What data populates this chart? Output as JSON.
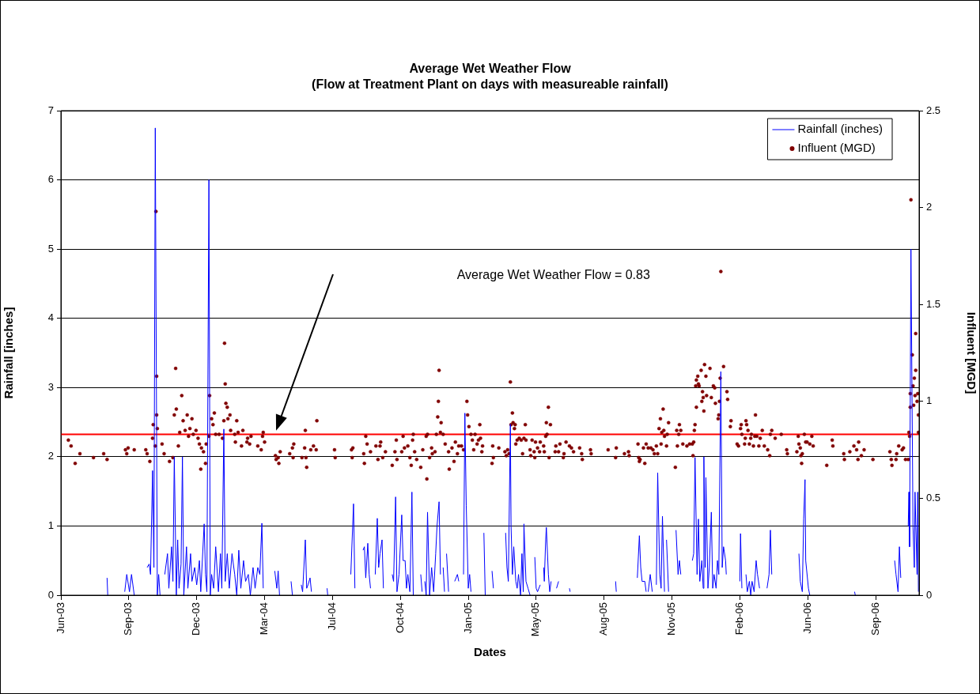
{
  "chart_data": {
    "type": "line",
    "title": "Average Wet Weather Flow",
    "subtitle": "(Flow at Treatment Plant on days with measureable rainfall)",
    "xlabel": "Dates",
    "ylabel": "Rainfall [inches]",
    "y2label": "Influent [MGD]",
    "xlim": [
      "2003-06-01",
      "2006-11-16"
    ],
    "xticks": [
      {
        "value": "2003-06-01",
        "label": "Jun-03"
      },
      {
        "value": "2003-09-09",
        "label": "Sep-03"
      },
      {
        "value": "2003-12-18",
        "label": "Dec-03"
      },
      {
        "value": "2004-03-27",
        "label": "Mar-04"
      },
      {
        "value": "2004-07-05",
        "label": "Jul-04"
      },
      {
        "value": "2004-10-13",
        "label": "Oct-04"
      },
      {
        "value": "2005-01-21",
        "label": "Jan-05"
      },
      {
        "value": "2005-05-01",
        "label": "May-05"
      },
      {
        "value": "2005-08-09",
        "label": "Aug-05"
      },
      {
        "value": "2005-11-17",
        "label": "Nov-05"
      },
      {
        "value": "2006-02-25",
        "label": "Feb-06"
      },
      {
        "value": "2006-06-05",
        "label": "Jun-06"
      },
      {
        "value": "2006-09-13",
        "label": "Sep-06"
      }
    ],
    "ylim": [
      0,
      7
    ],
    "yticks": [
      0,
      1,
      2,
      3,
      4,
      5,
      6,
      7
    ],
    "y2lim": [
      0,
      2.5
    ],
    "y2ticks": [
      0,
      0.5,
      1,
      1.5,
      2,
      2.5
    ],
    "grid": "y",
    "legend": "top right",
    "ref_lines": [
      {
        "axis": "y2",
        "value": 0.83,
        "color": "#ff0000"
      }
    ],
    "annotations": [
      "Average Wet Weather Flow = 0.83"
    ],
    "series": [
      {
        "name": "Rainfall (inches)",
        "type": "line",
        "color": "#0000ff",
        "marker": "none",
        "x": [
          "2003-08-08",
          "2003-08-09",
          "2003-08-20",
          "2003-09-03",
          "2003-09-06",
          "2003-09-10",
          "2003-09-13",
          "2003-09-17",
          "2003-09-25",
          "2003-10-06",
          "2003-10-09",
          "2003-10-11",
          "2003-10-14",
          "2003-10-16",
          "2003-10-18",
          "2003-10-21",
          "2003-10-23",
          "2003-10-25",
          "2003-10-28",
          "2003-11-01",
          "2003-11-05",
          "2003-11-07",
          "2003-11-11",
          "2003-11-13",
          "2003-11-15",
          "2003-11-18",
          "2003-11-20",
          "2003-11-22",
          "2003-11-25",
          "2003-11-27",
          "2003-11-29",
          "2003-12-03",
          "2003-12-05",
          "2003-12-09",
          "2003-12-11",
          "2003-12-15",
          "2003-12-18",
          "2003-12-22",
          "2003-12-24",
          "2003-12-29",
          "2003-12-31",
          "2004-01-02",
          "2004-01-05",
          "2004-01-07",
          "2004-01-09",
          "2004-01-12",
          "2004-01-15",
          "2004-01-19",
          "2004-01-22",
          "2004-01-24",
          "2004-01-27",
          "2004-01-29",
          "2004-02-01",
          "2004-02-04",
          "2004-02-08",
          "2004-02-12",
          "2004-02-15",
          "2004-02-18",
          "2004-02-21",
          "2004-02-25",
          "2004-02-28",
          "2004-03-03",
          "2004-03-06",
          "2004-03-10",
          "2004-03-13",
          "2004-03-17",
          "2004-03-20",
          "2004-03-23",
          "2004-03-25",
          "2004-04-01",
          "2004-04-11",
          "2004-04-14",
          "2004-04-16",
          "2004-04-18",
          "2004-04-25",
          "2004-05-05",
          "2004-05-07",
          "2004-05-12",
          "2004-05-20",
          "2004-05-22",
          "2004-05-26",
          "2004-05-28",
          "2004-05-30",
          "2004-06-02",
          "2004-06-04",
          "2004-06-15",
          "2004-06-27",
          "2004-06-28",
          "2004-07-15",
          "2004-08-01",
          "2004-08-05",
          "2004-08-07",
          "2004-08-12",
          "2004-08-19",
          "2004-08-21",
          "2004-08-23",
          "2004-08-26",
          "2004-08-28",
          "2004-08-30",
          "2004-09-02",
          "2004-09-06",
          "2004-09-09",
          "2004-09-11",
          "2004-09-13",
          "2004-09-16",
          "2004-09-18",
          "2004-09-25",
          "2004-10-01",
          "2004-10-03",
          "2004-10-06",
          "2004-10-08",
          "2004-10-11",
          "2004-10-15",
          "2004-10-17",
          "2004-10-20",
          "2004-10-22",
          "2004-10-24",
          "2004-10-27",
          "2004-10-30",
          "2004-11-01",
          "2004-11-06",
          "2004-11-12",
          "2004-11-14",
          "2004-11-16",
          "2004-11-18",
          "2004-11-20",
          "2004-11-22",
          "2004-11-25",
          "2004-11-28",
          "2004-12-01",
          "2004-12-04",
          "2004-12-06",
          "2004-12-09",
          "2004-12-11",
          "2004-12-13",
          "2004-12-15",
          "2004-12-17",
          "2004-12-18",
          "2004-12-20",
          "2004-12-23",
          "2004-12-27",
          "2005-01-01",
          "2005-01-05",
          "2005-01-07",
          "2005-01-10",
          "2005-01-14",
          "2005-01-16",
          "2005-01-18",
          "2005-01-21",
          "2005-01-23",
          "2005-01-25",
          "2005-02-01",
          "2005-02-13",
          "2005-02-15",
          "2005-02-20",
          "2005-02-25",
          "2005-02-27",
          "2005-03-05",
          "2005-03-17",
          "2005-03-19",
          "2005-03-21",
          "2005-03-24",
          "2005-03-25",
          "2005-03-27",
          "2005-03-29",
          "2005-04-01",
          "2005-04-03",
          "2005-04-05",
          "2005-04-08",
          "2005-04-10",
          "2005-04-12",
          "2005-04-13",
          "2005-04-16",
          "2005-04-19",
          "2005-04-22",
          "2005-04-25",
          "2005-04-29",
          "2005-05-01",
          "2005-05-03",
          "2005-05-07",
          "2005-05-10",
          "2005-05-12",
          "2005-05-13",
          "2005-05-15",
          "2005-05-16",
          "2005-05-19",
          "2005-05-21",
          "2005-05-23",
          "2005-05-27",
          "2005-05-31",
          "2005-06-03",
          "2005-06-10",
          "2005-06-19",
          "2005-06-20",
          "2005-07-15",
          "2005-08-26",
          "2005-08-27",
          "2005-09-10",
          "2005-09-27",
          "2005-09-30",
          "2005-10-02",
          "2005-10-04",
          "2005-10-08",
          "2005-10-10",
          "2005-10-11",
          "2005-10-13",
          "2005-10-16",
          "2005-10-19",
          "2005-10-22",
          "2005-10-25",
          "2005-10-27",
          "2005-10-30",
          "2005-11-01",
          "2005-11-03",
          "2005-11-06",
          "2005-11-07",
          "2005-11-09",
          "2005-11-12",
          "2005-11-18",
          "2005-11-23",
          "2005-11-26",
          "2005-11-28",
          "2005-11-30",
          "2005-12-08",
          "2005-12-17",
          "2005-12-19",
          "2005-12-21",
          "2005-12-24",
          "2005-12-26",
          "2005-12-28",
          "2005-12-31",
          "2006-01-02",
          "2006-01-03",
          "2006-01-05",
          "2006-01-06",
          "2006-01-09",
          "2006-01-11",
          "2006-01-14",
          "2006-01-16",
          "2006-01-18",
          "2006-01-21",
          "2006-01-23",
          "2006-01-25",
          "2006-01-28",
          "2006-01-30",
          "2006-02-01",
          "2006-02-04",
          "2006-02-05",
          "2006-02-12",
          "2006-02-25",
          "2006-02-26",
          "2006-02-28",
          "2006-03-02",
          "2006-03-06",
          "2006-03-08",
          "2006-03-11",
          "2006-03-13",
          "2006-03-15",
          "2006-03-18",
          "2006-03-21",
          "2006-03-23",
          "2006-03-26",
          "2006-04-01",
          "2006-04-06",
          "2006-04-09",
          "2006-04-11",
          "2006-04-13",
          "2006-04-20",
          "2006-05-23",
          "2006-05-25",
          "2006-05-28",
          "2006-05-30",
          "2006-06-01",
          "2006-06-02",
          "2006-06-06",
          "2006-06-08",
          "2006-07-01",
          "2006-08-13",
          "2006-08-14",
          "2006-09-20",
          "2006-10-11",
          "2006-10-13",
          "2006-10-16",
          "2006-10-18",
          "2006-10-20",
          "2006-10-25",
          "2006-10-31",
          "2006-11-01",
          "2006-11-02",
          "2006-11-04",
          "2006-11-07",
          "2006-11-09",
          "2006-11-10",
          "2006-11-13",
          "2006-11-14",
          "2006-11-15"
        ],
        "values": [
          0.25,
          0,
          null,
          0.05,
          0.3,
          0.05,
          0.3,
          0,
          null,
          0.4,
          0.45,
          0.3,
          1.8,
          0.4,
          6.75,
          0,
          0.3,
          0,
          null,
          0.3,
          0.6,
          0.1,
          0.7,
          0.2,
          2.0,
          0,
          0.8,
          0.1,
          0.45,
          2.0,
          0,
          0.7,
          0.1,
          0.6,
          0.2,
          0.4,
          0.15,
          0.5,
          0.05,
          1.03,
          0.3,
          0.05,
          6.0,
          0,
          0.3,
          0.1,
          0.7,
          0.05,
          0.6,
          0.1,
          2.4,
          0.2,
          0.6,
          0.1,
          0.6,
          0.3,
          0,
          0.65,
          0.1,
          0.5,
          0.2,
          0.3,
          0,
          0.4,
          0.1,
          0.4,
          0.3,
          1.04,
          0.1,
          null,
          0.35,
          0.1,
          0.35,
          0,
          null,
          0.2,
          0,
          null,
          0.15,
          0.05,
          0.8,
          0.1,
          0.15,
          0.25,
          0.05,
          null,
          0.1,
          0,
          null,
          0.3,
          1.32,
          0.1,
          null,
          0.65,
          0.7,
          0.25,
          0.75,
          0.3,
          0.1,
          null,
          0.3,
          1.11,
          0.4,
          0.6,
          0.8,
          0.1,
          null,
          0.3,
          0.2,
          1.42,
          0.05,
          0.3,
          1.16,
          0.5,
          0.5,
          0.1,
          0.3,
          0.05,
          1.49,
          0,
          null,
          0.3,
          0.05,
          null,
          0.2,
          0,
          1.2,
          0,
          0.4,
          0.05,
          0.6,
          1.0,
          1.35,
          0.3,
          null,
          0.4,
          0.05,
          null,
          0.6,
          0.05,
          null,
          0.2,
          0.3,
          0.2,
          null,
          0.3,
          2.63,
          1.3,
          0.1,
          0.3,
          0.05,
          null,
          0.9,
          0,
          null,
          0.35,
          0.1,
          null,
          0.9,
          0.4,
          0.2,
          2.47,
          1.0,
          0.3,
          0.7,
          0.2,
          0.1,
          0.3,
          0,
          0.6,
          0.05,
          1.03,
          0.2,
          0.1,
          0,
          null,
          0.55,
          0.1,
          0.05,
          0.15,
          null,
          0.4,
          0.2,
          0.8,
          0.98,
          0.3,
          0.05,
          0.2,
          null,
          0.1,
          0.2,
          null,
          0.1,
          0.05,
          null,
          0.2,
          0.05,
          null,
          0.25,
          0.86,
          0.4,
          0.2,
          0.2,
          0.05,
          null,
          0.05,
          0.3,
          0.05,
          null,
          0.15,
          1.77,
          0.3,
          0.1,
          1.14,
          0.05,
          null,
          0.8,
          0.05,
          null,
          0.94,
          0.3,
          0.5,
          0.3,
          null,
          0.5,
          0.6,
          1.99,
          0.3,
          1.1,
          0.2,
          0.5,
          0.1,
          2.0,
          0.4,
          1.7,
          0.1,
          0.4,
          1.2,
          0.1,
          0.3,
          0.1,
          0.5,
          0.3,
          3.23,
          0.4,
          0.7,
          0.5,
          0.3,
          null,
          0.2,
          0.89,
          0.1,
          null,
          0.3,
          0.05,
          0.2,
          0,
          0.2,
          0.05,
          0.5,
          0.3,
          0.1,
          null,
          0.1,
          0.3,
          0.94,
          0.3,
          null,
          0.6,
          0.2,
          0.05,
          1.1,
          1.67,
          0.5,
          0.1,
          0,
          null,
          0.05,
          0,
          null,
          0.5,
          0.3,
          0.05,
          0.7,
          0.25,
          null,
          1.0,
          1.49,
          0.7,
          5.0,
          1.0,
          0.4,
          1.49,
          0.3,
          1.49,
          0.05
        ]
      },
      {
        "name": "Influent (MGD)",
        "type": "scatter",
        "axis": "y2",
        "color": "#800000",
        "marker": "circle",
        "x": [
          "2003-06-12",
          "2003-06-16",
          "2003-06-22",
          "2003-06-29",
          "2003-07-19",
          "2003-08-03",
          "2003-08-08",
          "2003-09-04",
          "2003-09-06",
          "2003-09-08",
          "2003-09-17",
          "2003-10-04",
          "2003-10-06",
          "2003-10-10",
          "2003-10-14",
          "2003-10-15",
          "2003-10-18",
          "2003-10-19",
          "2003-10-20",
          "2003-10-20",
          "2003-10-21",
          "2003-10-28",
          "2003-10-31",
          "2003-11-08",
          "2003-11-13",
          "2003-11-15",
          "2003-11-17",
          "2003-11-18",
          "2003-11-21",
          "2003-11-23",
          "2003-11-26",
          "2003-11-28",
          "2003-12-01",
          "2003-12-04",
          "2003-12-06",
          "2003-12-08",
          "2003-12-11",
          "2003-12-13",
          "2003-12-17",
          "2003-12-20",
          "2003-12-22",
          "2003-12-24",
          "2003-12-25",
          "2003-12-28",
          "2003-12-31",
          "2004-01-01",
          "2004-01-05",
          "2004-01-06",
          "2004-01-09",
          "2004-01-11",
          "2004-01-13",
          "2004-01-15",
          "2004-01-20",
          "2004-01-25",
          "2004-01-27",
          "2004-01-28",
          "2004-01-29",
          "2004-01-30",
          "2004-02-01",
          "2004-02-02",
          "2004-02-05",
          "2004-02-06",
          "2004-02-12",
          "2004-02-13",
          "2004-02-15",
          "2004-02-17",
          "2004-02-22",
          "2004-02-24",
          "2004-03-01",
          "2004-03-02",
          "2004-03-05",
          "2004-03-07",
          "2004-03-17",
          "2004-03-22",
          "2004-03-24",
          "2004-03-25",
          "2004-03-27",
          "2004-04-12",
          "2004-04-13",
          "2004-04-16",
          "2004-04-17",
          "2004-04-19",
          "2004-05-03",
          "2004-05-07",
          "2004-05-08",
          "2004-05-09",
          "2004-05-21",
          "2004-05-25",
          "2004-05-26",
          "2004-05-27",
          "2004-05-28",
          "2004-06-03",
          "2004-06-07",
          "2004-06-11",
          "2004-06-12",
          "2004-07-08",
          "2004-07-09",
          "2004-08-02",
          "2004-08-03",
          "2004-08-04",
          "2004-08-20",
          "2004-08-21",
          "2004-08-23",
          "2004-08-25",
          "2004-08-30",
          "2004-09-07",
          "2004-09-10",
          "2004-09-13",
          "2004-09-14",
          "2004-09-17",
          "2004-09-21",
          "2004-10-01",
          "2004-10-05",
          "2004-10-07",
          "2004-10-08",
          "2004-10-15",
          "2004-10-17",
          "2004-10-19",
          "2004-10-24",
          "2004-10-27",
          "2004-10-29",
          "2004-10-31",
          "2004-11-01",
          "2004-11-03",
          "2004-11-06",
          "2004-11-12",
          "2004-11-15",
          "2004-11-20",
          "2004-11-21",
          "2004-11-22",
          "2004-11-25",
          "2004-11-28",
          "2004-11-29",
          "2004-12-03",
          "2004-12-05",
          "2004-12-07",
          "2004-12-08",
          "2004-12-09",
          "2004-12-11",
          "2004-12-12",
          "2004-12-15",
          "2004-12-18",
          "2004-12-23",
          "2004-12-24",
          "2004-12-28",
          "2004-12-31",
          "2005-01-02",
          "2005-01-05",
          "2005-01-07",
          "2005-01-11",
          "2005-01-14",
          "2005-01-19",
          "2005-01-20",
          "2005-01-22",
          "2005-01-25",
          "2005-01-27",
          "2005-01-29",
          "2005-01-31",
          "2005-02-03",
          "2005-02-05",
          "2005-02-07",
          "2005-02-08",
          "2005-02-10",
          "2005-02-11",
          "2005-02-25",
          "2005-02-26",
          "2005-02-27",
          "2005-03-07",
          "2005-03-16",
          "2005-03-18",
          "2005-03-20",
          "2005-03-22",
          "2005-03-24",
          "2005-03-25",
          "2005-03-27",
          "2005-03-28",
          "2005-03-30",
          "2005-03-31",
          "2005-04-01",
          "2005-04-03",
          "2005-04-06",
          "2005-04-09",
          "2005-04-11",
          "2005-04-13",
          "2005-04-15",
          "2005-04-16",
          "2005-04-22",
          "2005-04-23",
          "2005-04-25",
          "2005-04-28",
          "2005-04-29",
          "2005-04-30",
          "2005-05-03",
          "2005-05-06",
          "2005-05-07",
          "2005-05-12",
          "2005-05-13",
          "2005-05-15",
          "2005-05-16",
          "2005-05-17",
          "2005-05-19",
          "2005-05-20",
          "2005-05-22",
          "2005-05-29",
          "2005-05-30",
          "2005-06-03",
          "2005-06-05",
          "2005-06-10",
          "2005-06-11",
          "2005-06-14",
          "2005-06-19",
          "2005-06-22",
          "2005-06-25",
          "2005-07-04",
          "2005-07-07",
          "2005-07-08",
          "2005-07-20",
          "2005-07-21",
          "2005-08-15",
          "2005-08-26",
          "2005-08-27",
          "2005-09-08",
          "2005-09-14",
          "2005-09-15",
          "2005-09-28",
          "2005-09-29",
          "2005-09-30",
          "2005-10-01",
          "2005-10-06",
          "2005-10-08",
          "2005-10-10",
          "2005-10-13",
          "2005-10-17",
          "2005-10-20",
          "2005-10-22",
          "2005-10-25",
          "2005-10-27",
          "2005-10-29",
          "2005-10-31",
          "2005-11-01",
          "2005-11-02",
          "2005-11-04",
          "2005-11-05",
          "2005-11-06",
          "2005-11-09",
          "2005-11-10",
          "2005-11-12",
          "2005-11-22",
          "2005-11-24",
          "2005-11-25",
          "2005-11-27",
          "2005-11-28",
          "2005-11-30",
          "2005-12-03",
          "2005-12-09",
          "2005-12-13",
          "2005-12-17",
          "2005-12-18",
          "2005-12-19",
          "2005-12-20",
          "2005-12-21",
          "2005-12-22",
          "2005-12-23",
          "2005-12-23",
          "2005-12-25",
          "2005-12-26",
          "2005-12-27",
          "2005-12-30",
          "2005-12-31",
          "2006-01-01",
          "2006-01-02",
          "2006-01-03",
          "2006-01-04",
          "2006-01-06",
          "2006-01-07",
          "2006-01-12",
          "2006-01-14",
          "2006-01-17",
          "2006-01-19",
          "2006-01-20",
          "2006-01-24",
          "2006-01-25",
          "2006-01-26",
          "2006-01-27",
          "2006-01-28",
          "2006-02-01",
          "2006-02-06",
          "2006-02-07",
          "2006-02-11",
          "2006-02-12",
          "2006-02-21",
          "2006-02-23",
          "2006-02-26",
          "2006-02-27",
          "2006-02-28",
          "2006-03-04",
          "2006-03-05",
          "2006-03-06",
          "2006-03-07",
          "2006-03-09",
          "2006-03-11",
          "2006-03-13",
          "2006-03-14",
          "2006-03-17",
          "2006-03-19",
          "2006-03-20",
          "2006-03-22",
          "2006-03-25",
          "2006-03-27",
          "2006-03-30",
          "2006-04-02",
          "2006-04-07",
          "2006-04-10",
          "2006-04-11",
          "2006-04-13",
          "2006-04-18",
          "2006-04-27",
          "2006-05-05",
          "2006-05-06",
          "2006-05-20",
          "2006-05-22",
          "2006-05-23",
          "2006-05-25",
          "2006-05-26",
          "2006-05-27",
          "2006-05-28",
          "2006-05-31",
          "2006-06-02",
          "2006-06-04",
          "2006-06-08",
          "2006-06-11",
          "2006-06-13",
          "2006-07-03",
          "2006-07-11",
          "2006-07-12",
          "2006-07-28",
          "2006-07-29",
          "2006-08-06",
          "2006-08-12",
          "2006-08-16",
          "2006-08-18",
          "2006-08-19",
          "2006-08-23",
          "2006-08-27",
          "2006-09-09",
          "2006-10-04",
          "2006-10-06",
          "2006-10-07",
          "2006-10-13",
          "2006-10-14",
          "2006-10-17",
          "2006-10-22",
          "2006-10-24",
          "2006-10-27",
          "2006-10-31",
          "2006-11-01",
          "2006-11-02",
          "2006-11-03",
          "2006-11-03",
          "2006-11-04",
          "2006-11-06",
          "2006-11-07",
          "2006-11-08",
          "2006-11-09",
          "2006-11-10",
          "2006-11-11",
          "2006-11-11",
          "2006-11-13",
          "2006-11-14",
          "2006-11-15",
          "2006-11-15"
        ],
        "values": [
          0.8,
          0.77,
          0.68,
          0.73,
          0.71,
          0.73,
          0.7,
          0.75,
          0.73,
          0.76,
          0.75,
          0.75,
          0.73,
          0.69,
          0.81,
          0.88,
          0.77,
          1.98,
          1.13,
          0.93,
          0.86,
          0.78,
          0.73,
          0.69,
          0.71,
          0.93,
          1.17,
          0.96,
          0.77,
          0.84,
          1.03,
          0.9,
          0.85,
          0.93,
          0.82,
          0.86,
          0.91,
          0.83,
          0.85,
          0.81,
          0.78,
          0.65,
          0.76,
          0.74,
          0.68,
          0.78,
          0.82,
          1.03,
          0.91,
          0.88,
          0.94,
          0.83,
          0.83,
          0.81,
          0.9,
          1.3,
          1.09,
          0.99,
          0.97,
          0.91,
          0.93,
          0.85,
          0.83,
          0.79,
          0.9,
          0.84,
          0.77,
          0.85,
          0.79,
          0.81,
          0.78,
          0.82,
          0.77,
          0.75,
          0.82,
          0.84,
          0.79,
          0.72,
          0.7,
          0.71,
          0.68,
          0.74,
          0.73,
          0.76,
          0.71,
          0.78,
          0.71,
          0.76,
          0.85,
          0.71,
          0.66,
          0.75,
          0.77,
          0.75,
          0.9,
          0.75,
          0.71,
          0.75,
          0.71,
          0.76,
          0.73,
          0.68,
          0.82,
          0.78,
          0.74,
          0.77,
          0.7,
          0.77,
          0.79,
          0.71,
          0.74,
          0.67,
          0.74,
          0.8,
          0.7,
          0.74,
          0.82,
          0.76,
          0.77,
          0.71,
          0.67,
          0.8,
          0.83,
          0.74,
          0.7,
          0.66,
          0.75,
          0.82,
          0.6,
          0.83,
          0.71,
          0.76,
          0.73,
          0.74,
          0.83,
          0.92,
          1.0,
          1.16,
          0.84,
          0.89,
          0.83,
          0.78,
          0.74,
          0.65,
          0.76,
          0.69,
          0.79,
          0.73,
          0.77,
          0.77,
          0.75,
          1.0,
          0.93,
          0.87,
          0.83,
          0.8,
          0.75,
          0.83,
          0.78,
          0.8,
          0.88,
          0.81,
          0.74,
          0.77,
          0.68,
          0.77,
          0.71,
          0.76,
          0.74,
          0.72,
          0.75,
          0.73,
          1.1,
          0.88,
          0.94,
          0.89,
          0.86,
          0.88,
          0.78,
          0.8,
          0.81,
          0.8,
          0.73,
          0.81,
          0.88,
          0.8,
          0.75,
          0.72,
          0.8,
          0.74,
          0.71,
          0.79,
          0.76,
          0.74,
          0.79,
          0.77,
          0.74,
          0.82,
          0.89,
          0.83,
          0.97,
          0.71,
          0.88,
          0.74,
          0.77,
          0.74,
          0.78,
          0.71,
          0.73,
          0.79,
          0.77,
          0.76,
          0.74,
          0.76,
          0.73,
          0.7,
          0.75,
          0.73,
          0.75,
          0.71,
          0.76,
          0.73,
          0.74,
          0.72,
          0.78,
          0.71,
          0.69,
          0.7,
          0.76,
          0.68,
          0.78,
          0.76,
          0.76,
          0.75,
          0.73,
          0.77,
          0.73,
          0.86,
          0.91,
          0.78,
          0.84,
          0.96,
          0.85,
          0.82,
          0.77,
          0.83,
          0.89,
          0.66,
          0.85,
          0.77,
          0.83,
          0.88,
          0.85,
          0.78,
          0.77,
          0.78,
          0.78,
          0.72,
          0.79,
          0.85,
          0.88,
          1.08,
          0.97,
          1.11,
          1.13,
          1.09,
          1.08,
          1.16,
          1.0,
          1.05,
          1.02,
          0.95,
          1.19,
          1.13,
          1.03,
          1.17,
          1.02,
          1.08,
          1.07,
          0.99,
          0.91,
          0.93,
          1.0,
          1.12,
          1.67,
          1.18,
          1.05,
          1.01,
          0.87,
          0.9,
          0.78,
          0.77,
          0.86,
          0.88,
          0.83,
          0.78,
          0.81,
          0.9,
          0.88,
          0.85,
          0.78,
          0.81,
          0.83,
          0.77,
          0.82,
          0.93,
          0.82,
          0.77,
          0.81,
          0.85,
          0.77,
          0.75,
          0.72,
          0.83,
          0.85,
          0.81,
          0.83,
          0.75,
          0.73,
          0.74,
          0.82,
          0.78,
          0.76,
          0.72,
          0.68,
          0.73,
          0.83,
          0.79,
          0.79,
          0.78,
          0.82,
          0.77,
          0.67,
          0.8,
          0.77,
          0.73,
          0.7,
          0.74,
          0.77,
          0.75,
          0.7,
          0.79,
          0.72,
          0.75,
          0.7,
          0.74,
          0.7,
          0.67,
          0.7,
          0.73,
          0.77,
          0.75,
          0.76,
          0.7,
          0.7,
          0.84,
          0.82,
          0.97,
          1.04,
          2.04,
          1.24,
          1.08,
          0.98,
          1.12,
          1.03,
          1.16,
          1.35,
          1.0,
          1.04,
          0.93,
          0.84
        ]
      }
    ]
  }
}
